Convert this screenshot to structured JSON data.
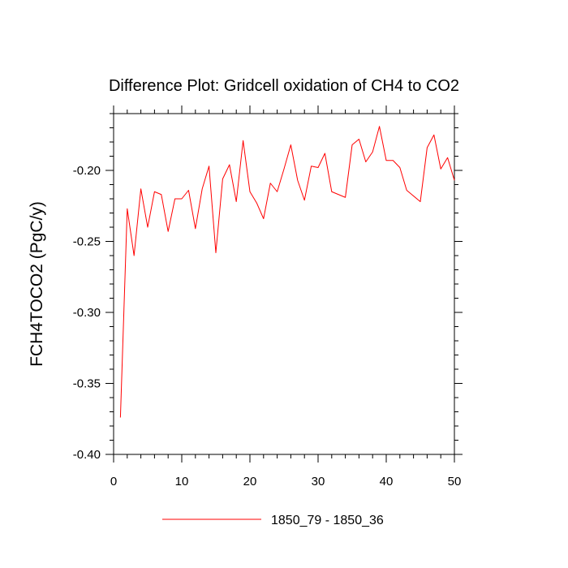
{
  "chart_data": {
    "type": "line",
    "title": "Difference Plot: Gridcell oxidation of CH4 to CO2",
    "xlabel": "",
    "ylabel": "FCH4TOCO2  (PgC/y)",
    "xlim": [
      0,
      50
    ],
    "ylim": [
      -0.4,
      -0.16
    ],
    "xticks": [
      0,
      10,
      20,
      30,
      40,
      50
    ],
    "xtick_labels": [
      "0",
      "10",
      "20",
      "30",
      "40",
      "50"
    ],
    "yticks": [
      -0.4,
      -0.35,
      -0.3,
      -0.25,
      -0.2
    ],
    "ytick_labels": [
      "-0.40",
      "-0.35",
      "-0.30",
      "-0.25",
      "-0.20"
    ],
    "legend_position": "bottom-center",
    "series": [
      {
        "name": "1850_79 - 1850_36",
        "color": "#ff0000",
        "x": [
          1,
          2,
          3,
          4,
          5,
          6,
          7,
          8,
          9,
          10,
          11,
          12,
          13,
          14,
          15,
          16,
          17,
          18,
          19,
          20,
          21,
          22,
          23,
          24,
          25,
          26,
          27,
          28,
          29,
          30,
          31,
          32,
          33,
          34,
          35,
          36,
          37,
          38,
          39,
          40,
          41,
          42,
          43,
          45,
          46,
          47,
          48,
          49,
          50
        ],
        "y": [
          -0.374,
          -0.227,
          -0.26,
          -0.213,
          -0.24,
          -0.215,
          -0.217,
          -0.243,
          -0.22,
          -0.22,
          -0.214,
          -0.241,
          -0.213,
          -0.197,
          -0.258,
          -0.206,
          -0.196,
          -0.222,
          -0.179,
          -0.215,
          -0.223,
          -0.234,
          -0.209,
          -0.215,
          -0.199,
          -0.182,
          -0.207,
          -0.221,
          -0.197,
          -0.198,
          -0.188,
          -0.215,
          -0.217,
          -0.219,
          -0.182,
          -0.178,
          -0.194,
          -0.187,
          -0.169,
          -0.193,
          -0.193,
          -0.198,
          -0.214,
          -0.222,
          -0.184,
          -0.175,
          -0.199,
          -0.191,
          -0.207
        ]
      }
    ]
  },
  "colors": {
    "axis": "#000000",
    "line": "#ff0000",
    "background": "#ffffff"
  }
}
